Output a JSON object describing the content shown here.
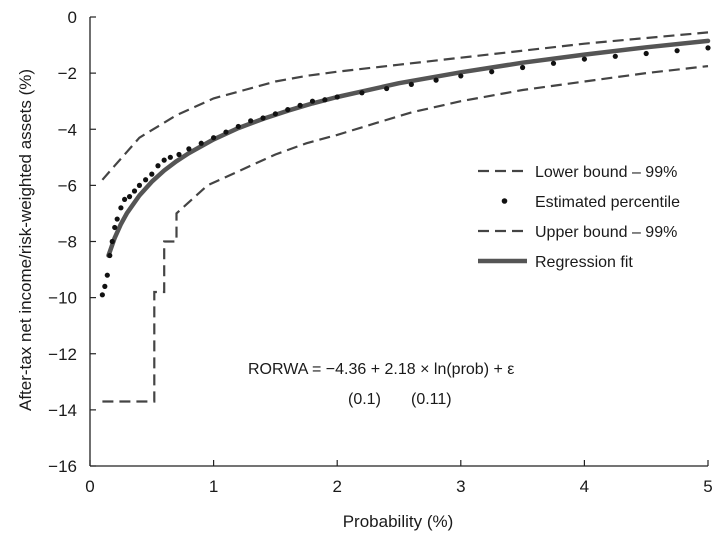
{
  "chart_data": {
    "type": "line",
    "xlabel": "Probability (%)",
    "ylabel": "After-tax net income/risk-weighted assets (%)",
    "xlim": [
      0,
      5
    ],
    "ylim": [
      -16,
      0
    ],
    "x_ticks": [
      0,
      1,
      2,
      3,
      4,
      5
    ],
    "y_ticks": [
      0,
      -2,
      -4,
      -6,
      -8,
      -10,
      -12,
      -14,
      -16
    ],
    "grid": false,
    "legend_position": "right",
    "series": [
      {
        "name": "Lower bound – 99%",
        "style": "dashed",
        "color": "#444444",
        "points": [
          [
            0.1,
            -13.7
          ],
          [
            0.52,
            -13.7
          ],
          [
            0.52,
            -9.8
          ],
          [
            0.6,
            -9.8
          ],
          [
            0.6,
            -8.0
          ],
          [
            0.7,
            -8.0
          ],
          [
            0.7,
            -7.0
          ],
          [
            0.8,
            -6.6
          ],
          [
            0.95,
            -6.0
          ],
          [
            1.1,
            -5.7
          ],
          [
            1.3,
            -5.3
          ],
          [
            1.5,
            -4.9
          ],
          [
            1.75,
            -4.5
          ],
          [
            2.0,
            -4.2
          ],
          [
            2.3,
            -3.8
          ],
          [
            2.6,
            -3.4
          ],
          [
            3.0,
            -3.0
          ],
          [
            3.5,
            -2.6
          ],
          [
            4.0,
            -2.3
          ],
          [
            4.5,
            -2.0
          ],
          [
            5.0,
            -1.75
          ]
        ]
      },
      {
        "name": "Estimated percentile",
        "style": "dots",
        "color": "#111111",
        "points": [
          [
            0.1,
            -9.9
          ],
          [
            0.12,
            -9.6
          ],
          [
            0.14,
            -9.2
          ],
          [
            0.16,
            -8.5
          ],
          [
            0.18,
            -8.0
          ],
          [
            0.2,
            -7.5
          ],
          [
            0.22,
            -7.2
          ],
          [
            0.25,
            -6.8
          ],
          [
            0.28,
            -6.5
          ],
          [
            0.32,
            -6.4
          ],
          [
            0.36,
            -6.2
          ],
          [
            0.4,
            -6.0
          ],
          [
            0.45,
            -5.8
          ],
          [
            0.5,
            -5.6
          ],
          [
            0.55,
            -5.3
          ],
          [
            0.6,
            -5.1
          ],
          [
            0.65,
            -5.0
          ],
          [
            0.72,
            -4.9
          ],
          [
            0.8,
            -4.7
          ],
          [
            0.9,
            -4.5
          ],
          [
            1.0,
            -4.3
          ],
          [
            1.1,
            -4.1
          ],
          [
            1.2,
            -3.9
          ],
          [
            1.3,
            -3.7
          ],
          [
            1.4,
            -3.6
          ],
          [
            1.5,
            -3.45
          ],
          [
            1.6,
            -3.3
          ],
          [
            1.7,
            -3.15
          ],
          [
            1.8,
            -3.0
          ],
          [
            1.9,
            -2.95
          ],
          [
            2.0,
            -2.85
          ],
          [
            2.2,
            -2.7
          ],
          [
            2.4,
            -2.55
          ],
          [
            2.6,
            -2.4
          ],
          [
            2.8,
            -2.25
          ],
          [
            3.0,
            -2.1
          ],
          [
            3.25,
            -1.95
          ],
          [
            3.5,
            -1.8
          ],
          [
            3.75,
            -1.65
          ],
          [
            4.0,
            -1.5
          ],
          [
            4.25,
            -1.4
          ],
          [
            4.5,
            -1.3
          ],
          [
            4.75,
            -1.2
          ],
          [
            5.0,
            -1.1
          ]
        ]
      },
      {
        "name": "Upper bound – 99%",
        "style": "dashed",
        "color": "#444444",
        "points": [
          [
            0.1,
            -5.8
          ],
          [
            0.2,
            -5.3
          ],
          [
            0.3,
            -4.8
          ],
          [
            0.4,
            -4.3
          ],
          [
            0.55,
            -3.9
          ],
          [
            0.7,
            -3.5
          ],
          [
            0.85,
            -3.2
          ],
          [
            1.0,
            -2.9
          ],
          [
            1.25,
            -2.6
          ],
          [
            1.5,
            -2.3
          ],
          [
            1.75,
            -2.1
          ],
          [
            2.0,
            -1.95
          ],
          [
            2.5,
            -1.7
          ],
          [
            3.0,
            -1.45
          ],
          [
            3.5,
            -1.2
          ],
          [
            4.0,
            -0.95
          ],
          [
            4.5,
            -0.75
          ],
          [
            5.0,
            -0.55
          ]
        ]
      },
      {
        "name": "Regression fit",
        "style": "solid-thick",
        "color": "#555555",
        "points": [
          [
            0.15,
            -8.5
          ],
          [
            0.2,
            -7.87
          ],
          [
            0.25,
            -7.38
          ],
          [
            0.3,
            -6.98
          ],
          [
            0.4,
            -6.36
          ],
          [
            0.5,
            -5.87
          ],
          [
            0.6,
            -5.47
          ],
          [
            0.7,
            -5.14
          ],
          [
            0.8,
            -4.85
          ],
          [
            1.0,
            -4.36
          ],
          [
            1.2,
            -3.96
          ],
          [
            1.4,
            -3.63
          ],
          [
            1.6,
            -3.34
          ],
          [
            1.8,
            -3.08
          ],
          [
            2.0,
            -2.85
          ],
          [
            2.5,
            -2.36
          ],
          [
            3.0,
            -1.97
          ],
          [
            3.5,
            -1.63
          ],
          [
            4.0,
            -1.34
          ],
          [
            4.5,
            -1.08
          ],
          [
            5.0,
            -0.85
          ]
        ]
      }
    ],
    "legend": [
      {
        "label": "Lower bound – 99%",
        "style": "dashed"
      },
      {
        "label": "Estimated percentile",
        "style": "dots"
      },
      {
        "label": "Upper bound – 99%",
        "style": "dashed"
      },
      {
        "label": "Regression fit",
        "style": "solid-thick"
      }
    ],
    "annotation": {
      "equation": "RORWA = −4.36 + 2.18 × ln(prob) + ε",
      "se1": "(0.1)",
      "se2": "(0.11)"
    }
  }
}
